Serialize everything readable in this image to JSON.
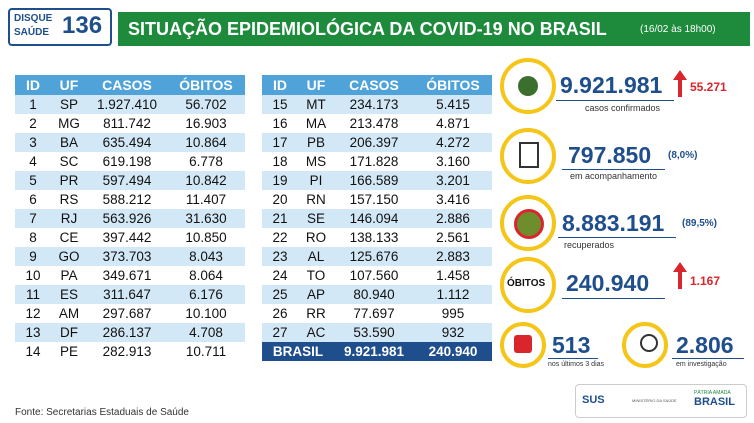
{
  "header": {
    "logo": {
      "line1": "DISQUE",
      "line2": "SAÚDE",
      "number": "136"
    },
    "title": "SITUAÇÃO EPIDEMIOLÓGICA DA COVID-19 NO BRASIL",
    "date": "(16/02 às 18h00)"
  },
  "tables": [
    {
      "columns": [
        "ID",
        "UF",
        "CASOS",
        "ÓBITOS"
      ],
      "rows": [
        [
          "1",
          "SP",
          "1.927.410",
          "56.702"
        ],
        [
          "2",
          "MG",
          "811.742",
          "16.903"
        ],
        [
          "3",
          "BA",
          "635.494",
          "10.864"
        ],
        [
          "4",
          "SC",
          "619.198",
          "6.778"
        ],
        [
          "5",
          "PR",
          "597.494",
          "10.842"
        ],
        [
          "6",
          "RS",
          "588.212",
          "11.407"
        ],
        [
          "7",
          "RJ",
          "563.926",
          "31.630"
        ],
        [
          "8",
          "CE",
          "397.442",
          "10.850"
        ],
        [
          "9",
          "GO",
          "373.703",
          "8.043"
        ],
        [
          "10",
          "PA",
          "349.671",
          "8.064"
        ],
        [
          "11",
          "ES",
          "311.647",
          "6.176"
        ],
        [
          "12",
          "AM",
          "297.687",
          "10.100"
        ],
        [
          "13",
          "DF",
          "286.137",
          "4.708"
        ],
        [
          "14",
          "PE",
          "282.913",
          "10.711"
        ]
      ]
    },
    {
      "columns": [
        "ID",
        "UF",
        "CASOS",
        "ÓBITOS"
      ],
      "rows": [
        [
          "15",
          "MT",
          "234.173",
          "5.415"
        ],
        [
          "16",
          "MA",
          "213.478",
          "4.871"
        ],
        [
          "17",
          "PB",
          "206.397",
          "4.272"
        ],
        [
          "18",
          "MS",
          "171.828",
          "3.160"
        ],
        [
          "19",
          "PI",
          "166.589",
          "3.201"
        ],
        [
          "20",
          "RN",
          "157.150",
          "3.416"
        ],
        [
          "21",
          "SE",
          "146.094",
          "2.886"
        ],
        [
          "22",
          "RO",
          "138.133",
          "2.561"
        ],
        [
          "23",
          "AL",
          "125.676",
          "2.883"
        ],
        [
          "24",
          "TO",
          "107.560",
          "1.458"
        ],
        [
          "25",
          "AP",
          "80.940",
          "1.112"
        ],
        [
          "26",
          "RR",
          "77.697",
          "995"
        ],
        [
          "27",
          "AC",
          "53.590",
          "932"
        ]
      ],
      "total": [
        "BRASIL",
        "9.921.981",
        "240.940"
      ]
    }
  ],
  "stats": {
    "confirmed": {
      "value": "9.921.981",
      "change": "55.271",
      "label": "casos confirmados"
    },
    "monitoring": {
      "value": "797.850",
      "pct": "(8,0%)",
      "label": "em acompanhamento"
    },
    "recovered": {
      "value": "8.883.191",
      "pct": "(89,5%)",
      "label": "recuperados"
    },
    "deaths": {
      "badge": "ÓBITOS",
      "value": "240.940",
      "change": "1.167"
    },
    "recent": {
      "value": "513",
      "label": "nos últimos 3 dias"
    },
    "investigation": {
      "value": "2.806",
      "label": "em investigação"
    }
  },
  "footer": {
    "source": "Fonte: Secretarias Estaduais de Saúde",
    "sus": "SUS",
    "ministry": "MINISTÉRIO DA SAÚDE",
    "patria": "PÁTRIA AMADA",
    "brasil": "BRASIL"
  }
}
